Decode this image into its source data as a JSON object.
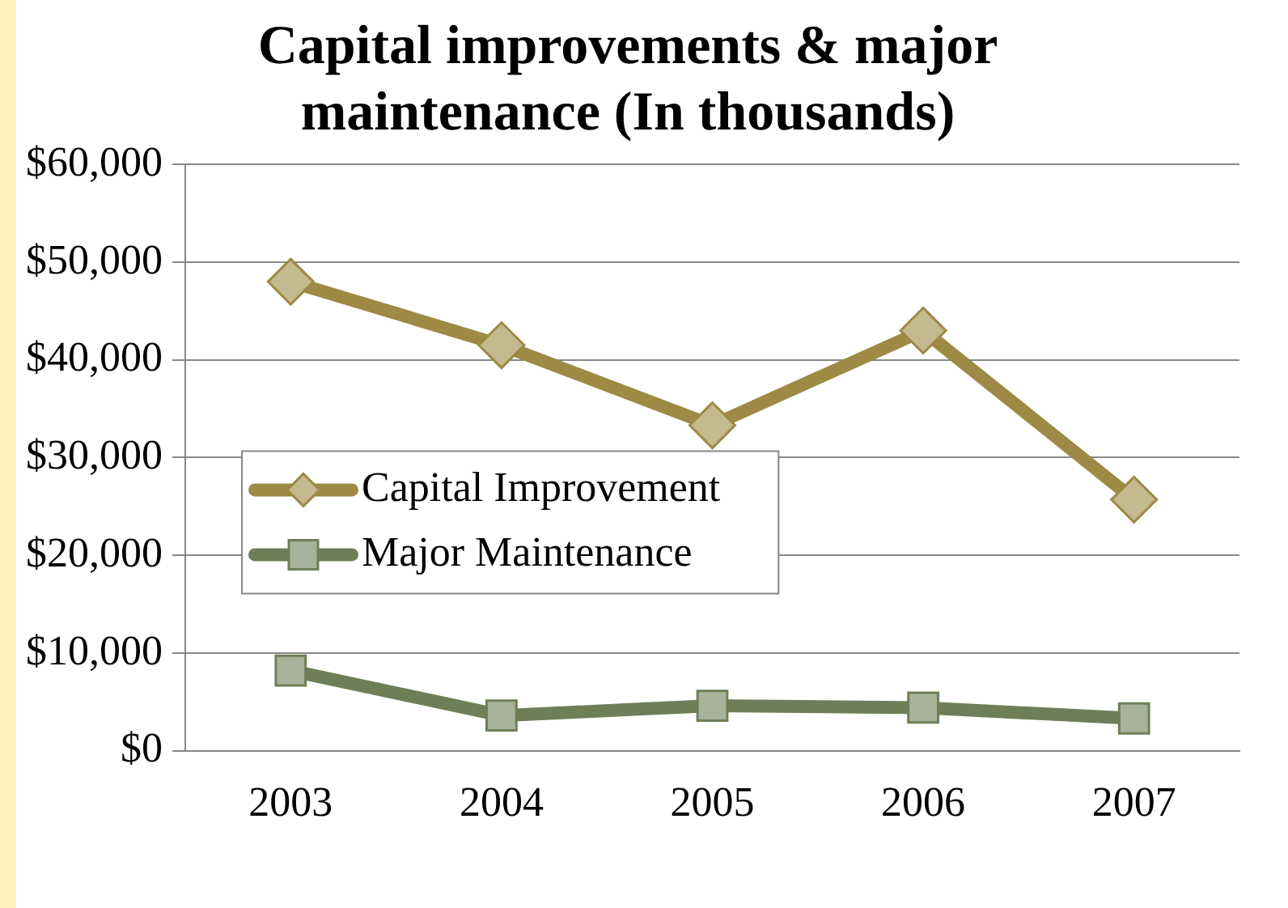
{
  "chart_data": {
    "type": "line",
    "title": "Capital improvements & major maintenance (In thousands)",
    "categories": [
      "2003",
      "2004",
      "2005",
      "2006",
      "2007"
    ],
    "series": [
      {
        "name": "Capital Improvement",
        "color": "#9c8a45",
        "marker": "diamond",
        "values": [
          48000,
          41500,
          33300,
          43000,
          25700
        ]
      },
      {
        "name": "Major Maintenance",
        "color": "#6e7f57",
        "marker": "square",
        "values": [
          8200,
          3600,
          4600,
          4400,
          3300
        ]
      }
    ],
    "ylim": [
      0,
      60000
    ],
    "yticks": [
      {
        "value": 0,
        "label": "$0"
      },
      {
        "value": 10000,
        "label": "$10,000"
      },
      {
        "value": 20000,
        "label": "$20,000"
      },
      {
        "value": 30000,
        "label": "$30,000"
      },
      {
        "value": 40000,
        "label": "$40,000"
      },
      {
        "value": 50000,
        "label": "$50,000"
      },
      {
        "value": 60000,
        "label": "$60,000"
      }
    ],
    "grid": "y",
    "legend": "left"
  }
}
